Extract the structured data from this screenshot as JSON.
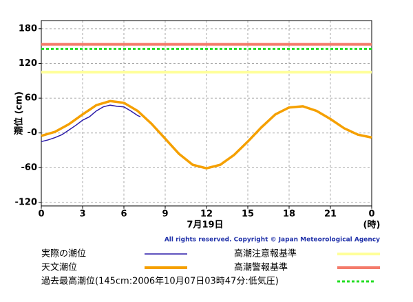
{
  "chart_data": {
    "type": "line",
    "y_label": "潮位 (cm)",
    "x_label": "7月19日",
    "x_unit": "(時)",
    "copyright": "All rights reserved. Copyright © Japan Meteorological Agency",
    "xlim": [
      0,
      24
    ],
    "xticks": [
      0,
      3,
      6,
      9,
      12,
      15,
      18,
      21,
      {
        "value": 24,
        "label": "0"
      }
    ],
    "ylim": [
      -126,
      194
    ],
    "yticks": [
      -120,
      -60,
      {
        "value": 0,
        "label": "-0"
      },
      60,
      120,
      180
    ],
    "grid": true,
    "series": [
      {
        "name": "実際の潮位",
        "color": "#2a1aa8",
        "x": [
          0,
          0.5,
          1,
          1.5,
          2,
          2.5,
          3,
          3.5,
          4,
          4.5,
          5,
          5.5,
          6,
          6.5,
          7,
          7.2
        ],
        "values": [
          -15,
          -12,
          -8,
          -3,
          5,
          13,
          22,
          28,
          38,
          45,
          48,
          46,
          45,
          38,
          30,
          28
        ]
      },
      {
        "name": "天文潮位",
        "color": "#f5a000",
        "x": [
          0,
          1,
          2,
          3,
          4,
          5,
          6,
          7,
          8,
          9,
          10,
          11,
          12,
          13,
          14,
          15,
          16,
          17,
          18,
          19,
          20,
          21,
          22,
          23,
          24
        ],
        "values": [
          -5,
          2,
          15,
          32,
          48,
          55,
          52,
          38,
          16,
          -10,
          -36,
          -55,
          -61,
          -55,
          -38,
          -15,
          10,
          32,
          44,
          46,
          38,
          24,
          8,
          -3,
          -8
        ]
      }
    ],
    "reference_lines": [
      {
        "name": "高潮注意報基準",
        "color": "#ffff99",
        "value": 105,
        "style": "solid"
      },
      {
        "name": "高潮警報基準",
        "color": "#f47b6b",
        "value": 153,
        "style": "solid"
      },
      {
        "name": "過去最高潮位(145cm:2006年10月07日03時47分:低気圧)",
        "color": "#22dd22",
        "value": 145,
        "style": "dotted"
      }
    ]
  }
}
